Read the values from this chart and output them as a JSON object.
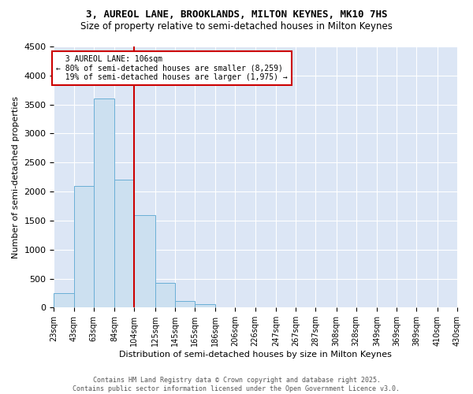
{
  "title_line1": "3, AUREOL LANE, BROOKLANDS, MILTON KEYNES, MK10 7HS",
  "title_line2": "Size of property relative to semi-detached houses in Milton Keynes",
  "xlabel": "Distribution of semi-detached houses by size in Milton Keynes",
  "ylabel": "Number of semi-detached properties",
  "footnote": "Contains HM Land Registry data © Crown copyright and database right 2025.\nContains public sector information licensed under the Open Government Licence v3.0.",
  "property_label": "3 AUREOL LANE: 106sqm",
  "pct_smaller": 80,
  "count_smaller": 8259,
  "pct_larger": 19,
  "count_larger": 1975,
  "vline_x": 104,
  "bin_labels": [
    "23sqm",
    "43sqm",
    "63sqm",
    "84sqm",
    "104sqm",
    "125sqm",
    "145sqm",
    "165sqm",
    "186sqm",
    "206sqm",
    "226sqm",
    "247sqm",
    "267sqm",
    "287sqm",
    "308sqm",
    "328sqm",
    "349sqm",
    "369sqm",
    "389sqm",
    "410sqm",
    "430sqm"
  ],
  "bin_edges": [
    23,
    43,
    63,
    84,
    104,
    125,
    145,
    165,
    186,
    206,
    226,
    247,
    267,
    287,
    308,
    328,
    349,
    369,
    389,
    410,
    430
  ],
  "bar_heights": [
    250,
    2100,
    3600,
    2200,
    1600,
    430,
    110,
    55,
    0,
    0,
    0,
    0,
    0,
    0,
    0,
    0,
    0,
    0,
    0,
    0
  ],
  "bar_color": "#cce0f0",
  "bar_edge_color": "#6aafd6",
  "vline_color": "#cc0000",
  "annotation_box_color": "#cc0000",
  "background_color": "#dce6f5",
  "ylim": [
    0,
    4500
  ],
  "yticks": [
    0,
    500,
    1000,
    1500,
    2000,
    2500,
    3000,
    3500,
    4000,
    4500
  ]
}
